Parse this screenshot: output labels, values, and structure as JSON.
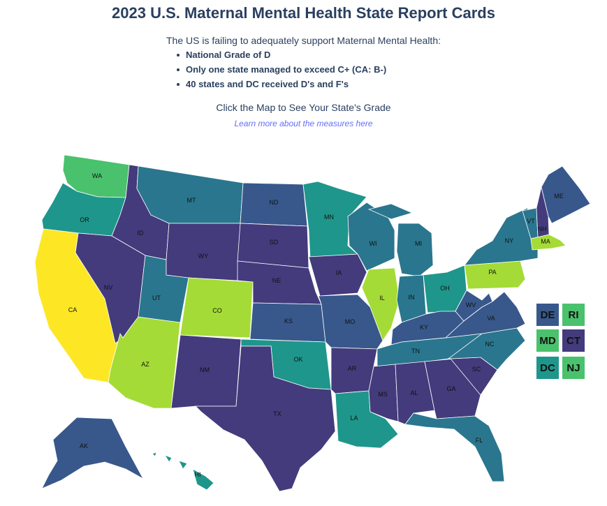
{
  "header": {
    "title": "2023 U.S. Maternal Mental Health State Report Cards",
    "subtitle": "The US is failing to adequately support Maternal Mental Health:",
    "bullets": [
      "National Grade of D",
      "Only one state managed to exceed C+ (CA: B-)",
      "40 states and DC received D's and F's"
    ],
    "cta": "Click the Map to See Your State's Grade",
    "link": "Learn more about the measures here"
  },
  "colors": {
    "lvl1": "#433b7c",
    "lvl2": "#38588c",
    "lvl3": "#2a768e",
    "lvl4": "#1f968b",
    "lvl5": "#4ac16d",
    "lvl6": "#a5db36",
    "lvl7": "#fde725"
  },
  "states": {
    "WA": {
      "label": "WA",
      "level": 5
    },
    "OR": {
      "label": "OR",
      "level": 4
    },
    "CA": {
      "label": "CA",
      "level": 7
    },
    "ID": {
      "label": "ID",
      "level": 1
    },
    "NV": {
      "label": "NV",
      "level": 1
    },
    "AZ": {
      "label": "AZ",
      "level": 6
    },
    "UT": {
      "label": "UT",
      "level": 3
    },
    "MT": {
      "label": "MT",
      "level": 3
    },
    "WY": {
      "label": "WY",
      "level": 1
    },
    "CO": {
      "label": "CO",
      "level": 6
    },
    "NM": {
      "label": "NM",
      "level": 1
    },
    "ND": {
      "label": "ND",
      "level": 2
    },
    "SD": {
      "label": "SD",
      "level": 1
    },
    "NE": {
      "label": "NE",
      "level": 1
    },
    "KS": {
      "label": "KS",
      "level": 2
    },
    "OK": {
      "label": "OK",
      "level": 4
    },
    "TX": {
      "label": "TX",
      "level": 1
    },
    "MN": {
      "label": "MN",
      "level": 4
    },
    "IA": {
      "label": "IA",
      "level": 1
    },
    "MO": {
      "label": "MO",
      "level": 2
    },
    "AR": {
      "label": "AR",
      "level": 1
    },
    "LA": {
      "label": "LA",
      "level": 4
    },
    "WI": {
      "label": "WI",
      "level": 3
    },
    "IL": {
      "label": "IL",
      "level": 6
    },
    "MI": {
      "label": "MI",
      "level": 3
    },
    "IN": {
      "label": "IN",
      "level": 3
    },
    "OH": {
      "label": "OH",
      "level": 4
    },
    "KY": {
      "label": "KY",
      "level": 2
    },
    "TN": {
      "label": "TN",
      "level": 3
    },
    "MS": {
      "label": "MS",
      "level": 1
    },
    "AL": {
      "label": "AL",
      "level": 1
    },
    "GA": {
      "label": "GA",
      "level": 1
    },
    "FL": {
      "label": "FL",
      "level": 3
    },
    "SC": {
      "label": "SC",
      "level": 1
    },
    "NC": {
      "label": "NC",
      "level": 3
    },
    "VA": {
      "label": "VA",
      "level": 2
    },
    "WV": {
      "label": "WV",
      "level": 2
    },
    "PA": {
      "label": "PA",
      "level": 6
    },
    "NY": {
      "label": "NY",
      "level": 3
    },
    "VT": {
      "label": "VT",
      "level": 3
    },
    "NH": {
      "label": "NH",
      "level": 1
    },
    "ME": {
      "label": "ME",
      "level": 2
    },
    "MA": {
      "label": "MA",
      "level": 6
    },
    "AK": {
      "label": "AK",
      "level": 2
    },
    "HI": {
      "label": "HI",
      "level": 4
    }
  },
  "small_states": [
    {
      "label": "DE",
      "level": 2
    },
    {
      "label": "RI",
      "level": 5
    },
    {
      "label": "MD",
      "level": 5
    },
    {
      "label": "CT",
      "level": 1
    },
    {
      "label": "DC",
      "level": 4
    },
    {
      "label": "NJ",
      "level": 5
    }
  ]
}
